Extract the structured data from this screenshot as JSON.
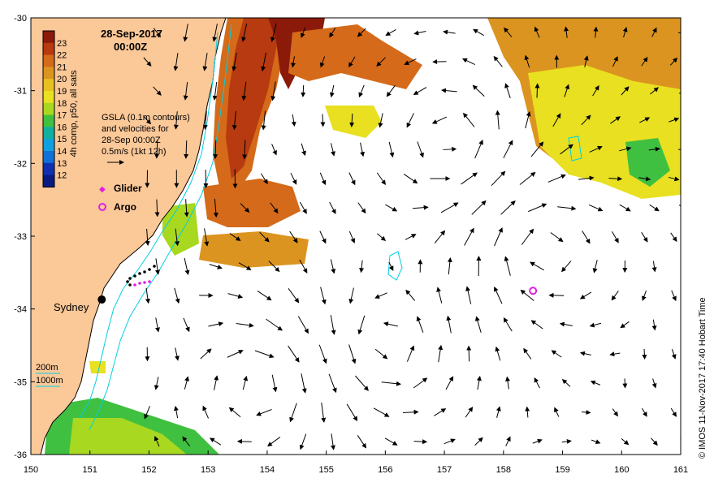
{
  "title": {
    "date": "28-Sep-2017",
    "time": "00:00Z"
  },
  "colorbar": {
    "label": "4h comp, p50, all sats",
    "ticks": [
      "23",
      "22",
      "21",
      "20",
      "19",
      "18",
      "17",
      "16",
      "15",
      "14",
      "13",
      "12"
    ],
    "colors": [
      "#8b1a0a",
      "#b83a10",
      "#d46a1a",
      "#dc9420",
      "#e8c020",
      "#e8e020",
      "#a8d820",
      "#40c040",
      "#10b0a0",
      "#10a0e0",
      "#1070d8",
      "#1030b0",
      "#0a1a80"
    ]
  },
  "annotations": {
    "gsla_lines": [
      "GSLA (0.1m contours)",
      "and velocities for",
      "28-Sep 00:00Z",
      "0.5m/s (1kt 12h)"
    ],
    "glider_label": "Glider",
    "argo_label": "Argo",
    "city_label": "Sydney",
    "depth_200": "200m",
    "depth_1000": "1000m",
    "copyright": "© IMOS 11-Nov-2017 17:40 Hobart Time"
  },
  "axes": {
    "x_ticks": [
      "150",
      "151",
      "152",
      "153",
      "154",
      "155",
      "156",
      "157",
      "158",
      "159",
      "160",
      "161"
    ],
    "y_ticks": [
      "-30",
      "-31",
      "-32",
      "-33",
      "-34",
      "-35",
      "-36"
    ],
    "xlim": [
      150,
      161
    ],
    "ylim": [
      -36,
      -30
    ]
  },
  "colors": {
    "land": "#fbc898",
    "coastline": "#000000",
    "isobath": "#00d0e0",
    "arrow": "#000000",
    "glider": "#e020e0",
    "argo": "#e020e0"
  },
  "markers": {
    "sydney": {
      "lon": 151.2,
      "lat": -33.87
    },
    "argo": {
      "lon": 158.5,
      "lat": -33.75
    }
  }
}
